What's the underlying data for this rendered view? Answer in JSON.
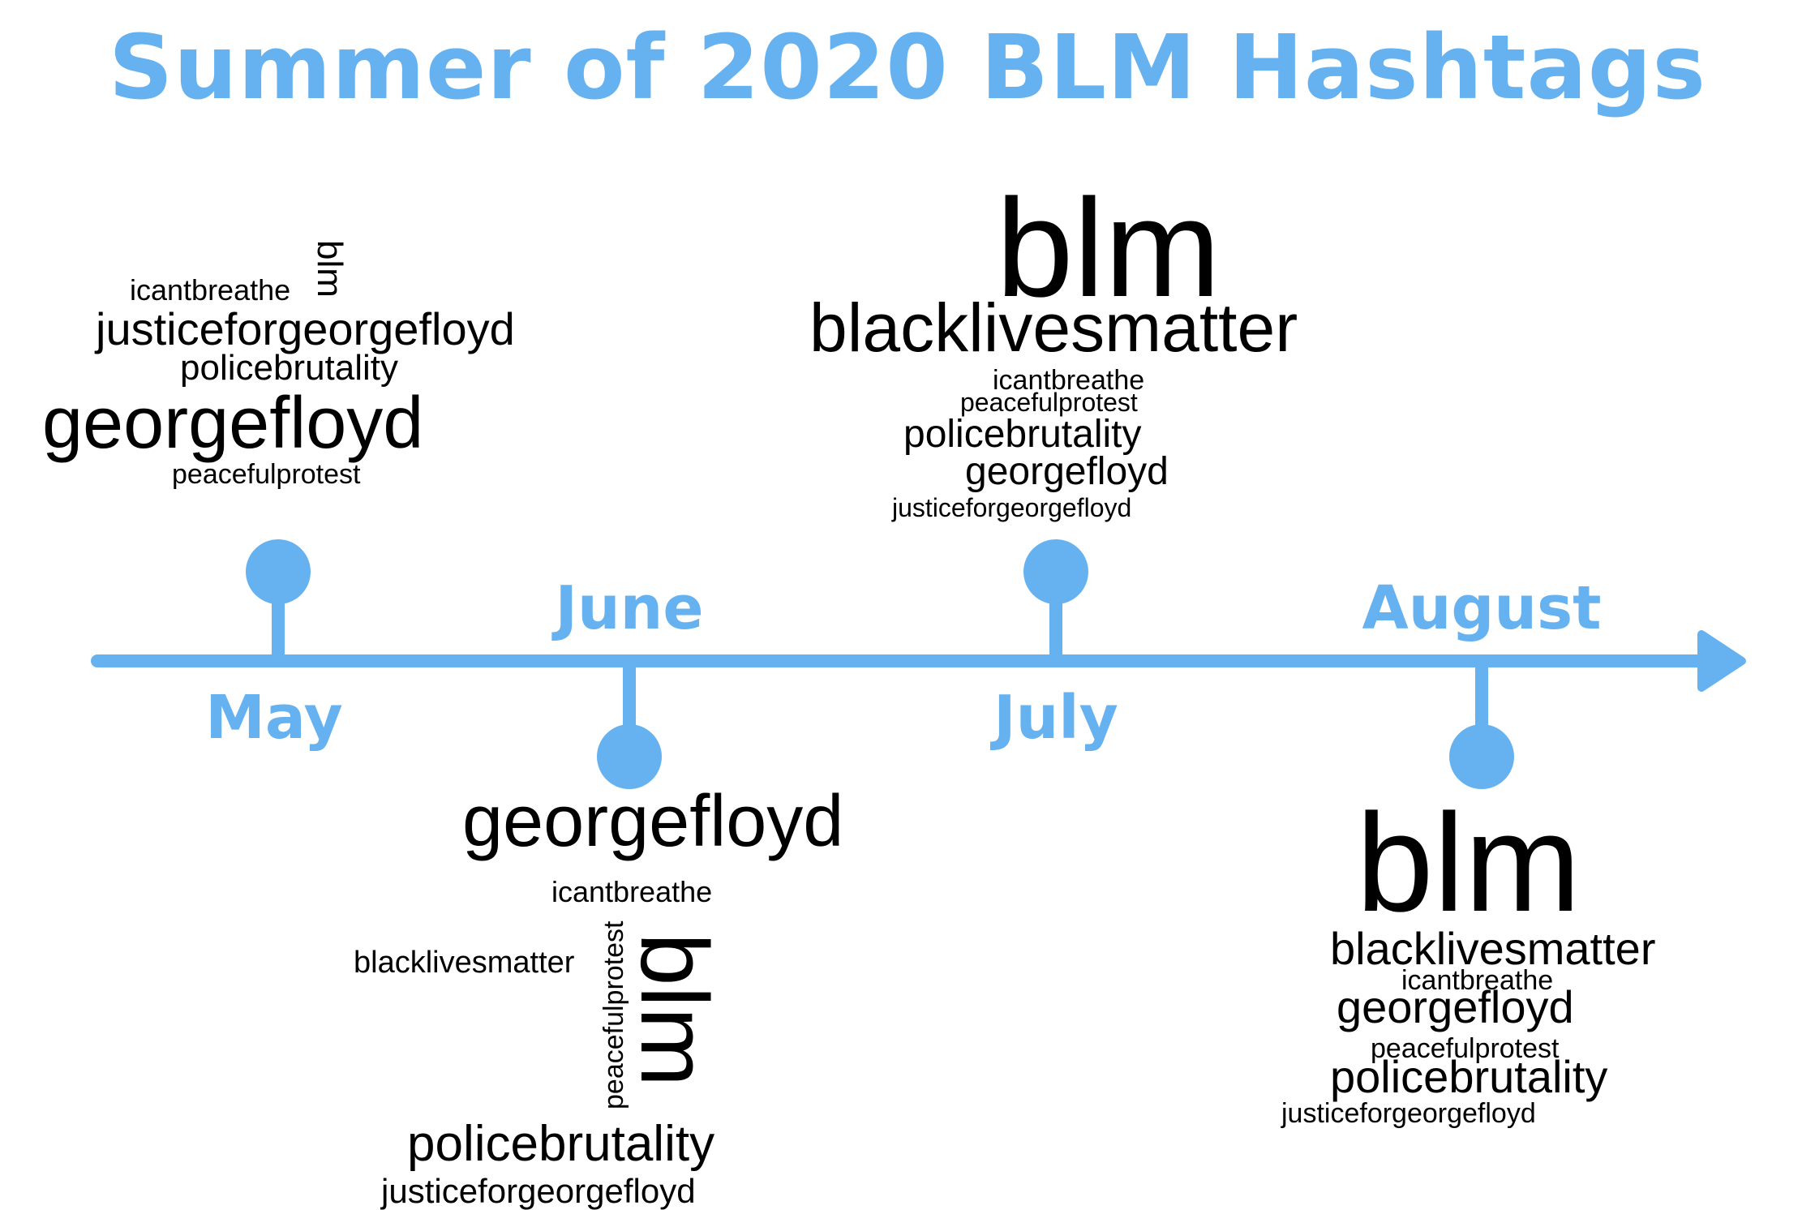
{
  "title": "Summer of 2020 BLM Hashtags",
  "colors": {
    "accent": "#66b2f0",
    "text": "#000000"
  },
  "timeline": {
    "months": [
      {
        "label": "May",
        "marker_side": "above"
      },
      {
        "label": "June",
        "marker_side": "below"
      },
      {
        "label": "July",
        "marker_side": "above"
      },
      {
        "label": "August",
        "marker_side": "below"
      }
    ],
    "arrow": "right-arrow-icon"
  },
  "clouds": {
    "may": [
      "icantbreathe",
      "blm",
      "justiceforgeorgefloyd",
      "policebrutality",
      "georgefloyd",
      "peacefulprotest"
    ],
    "june": [
      "georgefloyd",
      "icantbreathe",
      "blacklivesmatter",
      "peacefulprotest",
      "blm",
      "policebrutality",
      "justiceforgeorgefloyd"
    ],
    "july": [
      "blm",
      "blacklivesmatter",
      "icantbreathe",
      "peacefulprotest",
      "policebrutality",
      "georgefloyd",
      "justiceforgeorgefloyd"
    ],
    "august": [
      "blm",
      "blacklivesmatter",
      "icantbreathe",
      "georgefloyd",
      "peacefulprotest",
      "policebrutality",
      "justiceforgeorgefloyd"
    ]
  }
}
